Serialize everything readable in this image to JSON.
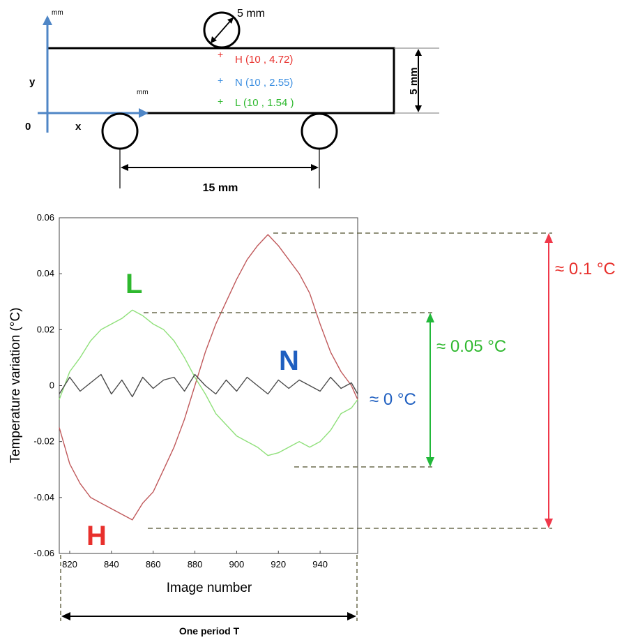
{
  "schematic": {
    "x_axis_label": "x",
    "y_axis_label": "y",
    "origin_label": "0",
    "x_unit": "mm",
    "y_unit": "mm",
    "indenter_diameter_label": "5 mm",
    "thickness_label": "5 mm",
    "span_label": "15 mm",
    "points": [
      {
        "marker": "+",
        "label": "H (10 , 4.72)",
        "color": "#e8302c"
      },
      {
        "marker": "+",
        "label": "N (10 , 2.55)",
        "color": "#3b8ee0"
      },
      {
        "marker": "+",
        "label": "L (10 , 1.54 )",
        "color": "#2eb82e"
      }
    ]
  },
  "annotations": {
    "L_letter": "L",
    "N_letter": "N",
    "H_letter": "H",
    "amp_H": "≈ 0.1 °C",
    "amp_L": "≈ 0.05 °C",
    "amp_N": "≈ 0 °C",
    "period": "One period T",
    "colors": {
      "H": "#e8302c",
      "L": "#2eb82e",
      "N": "#1f5fc0",
      "arrow_H": "#f0384a",
      "arrow_L": "#22b83a",
      "guide": "#6b6b4e"
    }
  },
  "chart_data": {
    "type": "line",
    "title": "",
    "xlabel": "Image number",
    "ylabel": "Temperature variation (°C)",
    "xlim": [
      815,
      958
    ],
    "ylim": [
      -0.06,
      0.06
    ],
    "xticks": [
      820,
      840,
      860,
      880,
      900,
      920,
      940
    ],
    "yticks": [
      -0.06,
      -0.04,
      -0.02,
      0,
      0.02,
      0.04,
      0.06
    ],
    "ytick_labels": [
      "-0.06",
      "-0.04",
      "-0.02",
      "0",
      "0.02",
      "0.04",
      "0.06"
    ],
    "grid": false,
    "legend": "none",
    "series": [
      {
        "name": "H",
        "color": "#c0595b",
        "x": [
          815,
          820,
          825,
          830,
          835,
          840,
          845,
          850,
          855,
          860,
          865,
          870,
          875,
          880,
          885,
          890,
          895,
          900,
          905,
          910,
          915,
          920,
          925,
          930,
          935,
          940,
          945,
          950,
          955,
          958
        ],
        "y": [
          -0.015,
          -0.028,
          -0.035,
          -0.04,
          -0.042,
          -0.044,
          -0.046,
          -0.048,
          -0.042,
          -0.038,
          -0.03,
          -0.022,
          -0.012,
          0.0,
          0.012,
          0.022,
          0.03,
          0.038,
          0.045,
          0.05,
          0.054,
          0.05,
          0.045,
          0.04,
          0.033,
          0.022,
          0.012,
          0.005,
          0.0,
          -0.005
        ]
      },
      {
        "name": "L",
        "color": "#8fe07a",
        "x": [
          815,
          820,
          825,
          830,
          835,
          840,
          845,
          850,
          855,
          860,
          865,
          870,
          875,
          880,
          885,
          890,
          895,
          900,
          905,
          910,
          915,
          920,
          925,
          930,
          935,
          940,
          945,
          950,
          955,
          958
        ],
        "y": [
          -0.005,
          0.005,
          0.01,
          0.016,
          0.02,
          0.022,
          0.024,
          0.027,
          0.025,
          0.022,
          0.02,
          0.016,
          0.01,
          0.003,
          -0.003,
          -0.01,
          -0.014,
          -0.018,
          -0.02,
          -0.022,
          -0.025,
          -0.024,
          -0.022,
          -0.02,
          -0.022,
          -0.02,
          -0.016,
          -0.01,
          -0.008,
          -0.005
        ]
      },
      {
        "name": "N",
        "color": "#4a4a4a",
        "x": [
          815,
          820,
          825,
          830,
          835,
          840,
          845,
          850,
          855,
          860,
          865,
          870,
          875,
          880,
          885,
          890,
          895,
          900,
          905,
          910,
          915,
          920,
          925,
          930,
          935,
          940,
          945,
          950,
          955,
          958
        ],
        "y": [
          -0.003,
          0.003,
          -0.002,
          0.001,
          0.004,
          -0.003,
          0.002,
          -0.004,
          0.003,
          -0.001,
          0.002,
          0.003,
          -0.002,
          0.004,
          0.0,
          -0.003,
          0.002,
          -0.002,
          0.003,
          0.0,
          -0.003,
          0.002,
          -0.001,
          0.002,
          0.0,
          -0.002,
          0.003,
          -0.001,
          0.001,
          -0.003
        ]
      }
    ]
  }
}
